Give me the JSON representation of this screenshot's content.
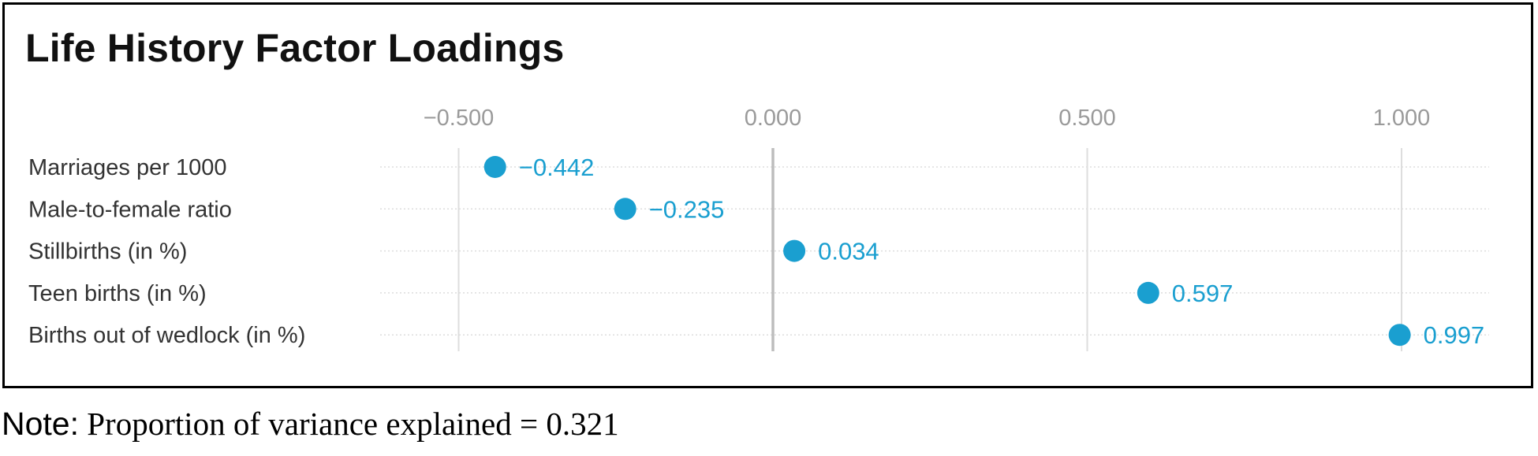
{
  "chart_data": {
    "type": "scatter",
    "title": "Life History Factor Loadings",
    "xlabel": "",
    "ylabel": "",
    "xlim": [
      -0.75,
      1.15
    ],
    "xticks": [
      -0.5,
      0.0,
      0.5,
      1.0
    ],
    "xtick_labels": [
      "−0.500",
      "0.000",
      "0.500",
      "1.000"
    ],
    "axis_position": "top",
    "grid": true,
    "categories": [
      "Marriages per 1000",
      "Male-to-female ratio",
      "Stillbirths (in %)",
      "Teen births (in %)",
      "Births out of wedlock (in %)"
    ],
    "values": [
      -0.442,
      -0.235,
      0.034,
      0.597,
      0.997
    ],
    "value_labels": [
      "−0.442",
      "−0.235",
      "0.034",
      "0.597",
      "0.997"
    ],
    "colors": {
      "point": "#1a9fd0",
      "grid": "#dddddd",
      "zero_line": "#bdbdbd",
      "tick_label": "#9a9a9a",
      "category_label": "#333333"
    }
  },
  "note": {
    "label": "Note:",
    "text": " Proportion of variance explained = 0.321"
  }
}
